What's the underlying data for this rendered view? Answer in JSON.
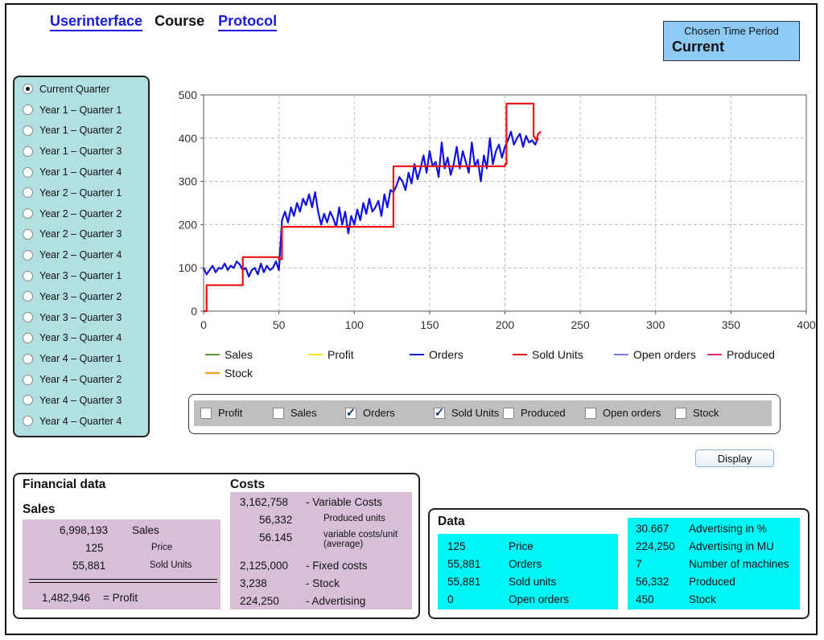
{
  "nav": {
    "userinterface": "Userinterface",
    "course": "Course",
    "protocol": "Protocol"
  },
  "period": {
    "label": "Chosen Time Period",
    "value": "Current"
  },
  "quarters": [
    {
      "label": "Current Quarter",
      "selected": true
    },
    {
      "label": "Year 1 - Quarter 1",
      "selected": false
    },
    {
      "label": "Year 1 - Quarter 2",
      "selected": false
    },
    {
      "label": "Year 1 - Quarter 3",
      "selected": false
    },
    {
      "label": "Year 1 - Quarter 4",
      "selected": false
    },
    {
      "label": "Year 2 - Quarter 1",
      "selected": false
    },
    {
      "label": "Year 2 - Quarter 2",
      "selected": false
    },
    {
      "label": "Year 2 - Quarter 3",
      "selected": false
    },
    {
      "label": "Year 2 - Quarter 4",
      "selected": false
    },
    {
      "label": "Year 3 - Quarter 1",
      "selected": false
    },
    {
      "label": "Year 3 - Quarter 2",
      "selected": false
    },
    {
      "label": "Year 3 - Quarter 3",
      "selected": false
    },
    {
      "label": "Year 3 - Quarter 4",
      "selected": false
    },
    {
      "label": "Year 4 - Quarter 1",
      "selected": false
    },
    {
      "label": "Year 4 - Quarter 2",
      "selected": false
    },
    {
      "label": "Year 4 - Quarter 3",
      "selected": false
    },
    {
      "label": "Year 4 - Quarter 4",
      "selected": false
    }
  ],
  "chart_data": {
    "type": "line",
    "xlim": [
      0,
      400
    ],
    "ylim": [
      0,
      500
    ],
    "x_ticks": [
      0,
      50,
      100,
      150,
      200,
      250,
      300,
      350,
      400
    ],
    "y_ticks": [
      0,
      100,
      200,
      300,
      400,
      500
    ],
    "x_tick_labels": [
      "0",
      "50",
      "100",
      "150",
      "200",
      "250",
      "300",
      "350",
      "400"
    ],
    "y_tick_labels": [
      "0",
      "100",
      "200",
      "300",
      "400",
      "500"
    ],
    "grid": true,
    "legend_position": "bottom",
    "series": [
      {
        "name": "Orders",
        "color": "#1010e0",
        "x": [
          0,
          2,
          4,
          6,
          8,
          10,
          12,
          14,
          16,
          18,
          20,
          22,
          24,
          26,
          28,
          30,
          32,
          34,
          36,
          38,
          40,
          42,
          44,
          46,
          48,
          50,
          52,
          54,
          56,
          58,
          60,
          62,
          64,
          66,
          68,
          70,
          72,
          74,
          76,
          78,
          80,
          82,
          84,
          86,
          88,
          90,
          92,
          94,
          96,
          98,
          100,
          102,
          104,
          106,
          108,
          110,
          112,
          114,
          116,
          118,
          120,
          122,
          124,
          126,
          128,
          130,
          132,
          134,
          136,
          138,
          140,
          142,
          144,
          146,
          148,
          150,
          152,
          154,
          156,
          158,
          160,
          162,
          164,
          166,
          168,
          170,
          172,
          174,
          176,
          178,
          180,
          182,
          184,
          186,
          188,
          190,
          192,
          194,
          196,
          198,
          200,
          202,
          204,
          206,
          208,
          210,
          212,
          214,
          216,
          218,
          220,
          222
        ],
        "y": [
          100,
          85,
          95,
          105,
          90,
          100,
          98,
          110,
          95,
          105,
          100,
          115,
          108,
          95,
          100,
          80,
          95,
          100,
          85,
          110,
          90,
          105,
          95,
          100,
          115,
          95,
          210,
          230,
          205,
          240,
          220,
          250,
          230,
          260,
          245,
          270,
          240,
          275,
          230,
          200,
          225,
          205,
          230,
          215,
          195,
          240,
          200,
          230,
          180,
          220,
          200,
          235,
          210,
          250,
          225,
          260,
          230,
          240,
          255,
          220,
          270,
          240,
          280,
          275,
          290,
          310,
          300,
          280,
          320,
          295,
          340,
          305,
          330,
          360,
          320,
          370,
          335,
          345,
          310,
          390,
          330,
          355,
          315,
          340,
          380,
          330,
          370,
          345,
          320,
          390,
          335,
          350,
          300,
          360,
          330,
          400,
          340,
          370,
          385,
          355,
          380,
          395,
          415,
          385,
          400,
          410,
          380,
          405,
          390,
          395,
          385,
          400
        ]
      },
      {
        "name": "Sold Units",
        "color": "#ee1010",
        "x": [
          0,
          2,
          2,
          26,
          26,
          50,
          50,
          52,
          52,
          126,
          126,
          200,
          200,
          201,
          201,
          219,
          219,
          221,
          222,
          224
        ],
        "y": [
          0,
          0,
          60,
          60,
          125,
          125,
          120,
          120,
          195,
          195,
          335,
          335,
          340,
          340,
          480,
          480,
          405,
          395,
          410,
          415
        ]
      }
    ],
    "legend": [
      {
        "name": "Sales",
        "color": "#5a9a2a"
      },
      {
        "name": "Profit",
        "color": "#f5e21a"
      },
      {
        "name": "Orders",
        "color": "#1010e0"
      },
      {
        "name": "Sold Units",
        "color": "#ee1010"
      },
      {
        "name": "Open orders",
        "color": "#7b7bef"
      },
      {
        "name": "Produced",
        "color": "#f0207a"
      },
      {
        "name": "Stock",
        "color": "#f7981a"
      }
    ]
  },
  "checkboxes": [
    {
      "label": "Profit",
      "checked": false
    },
    {
      "label": "Sales",
      "checked": false
    },
    {
      "label": "Orders",
      "checked": true
    },
    {
      "label": "Sold Units",
      "checked": true
    },
    {
      "label": "Produced",
      "checked": false
    },
    {
      "label": "Open orders",
      "checked": false
    },
    {
      "label": "Stock",
      "checked": false
    }
  ],
  "display_button": "Display",
  "financial": {
    "title": "Financial data",
    "sales_title": "Sales",
    "sales_value": "6,998,193",
    "sales_label": "Sales",
    "price_value": "125",
    "price_label": "Price",
    "sold_value": "55,881",
    "sold_label": "Sold Units",
    "profit_value": "1,482,946",
    "profit_label": "= Profit",
    "costs_title": "Costs",
    "variable_value": "3,162,758",
    "variable_label": "- Variable Costs",
    "produced_value": "56,332",
    "produced_label": "Produced units",
    "varunit_value": "56.145",
    "varunit_label": "variable costs/unit (average)",
    "fixed_value": "2,125,000",
    "fixed_label": "- Fixed costs",
    "stock_value": "3,238",
    "stock_label": "- Stock",
    "adv_value": "224,250",
    "adv_label": "- Advertising"
  },
  "data_panel": {
    "title": "Data",
    "left": [
      {
        "value": "125",
        "label": "Price"
      },
      {
        "value": "55,881",
        "label": "Orders"
      },
      {
        "value": "55,881",
        "label": "Sold units"
      },
      {
        "value": "0",
        "label": "Open orders"
      }
    ],
    "right": [
      {
        "value": "30.667",
        "label": "Advertising in %"
      },
      {
        "value": "224,250",
        "label": "Advertising in MU"
      },
      {
        "value": "7",
        "label": "Number of machines"
      },
      {
        "value": "56,332",
        "label": "Produced"
      },
      {
        "value": "450",
        "label": "Stock"
      }
    ]
  }
}
